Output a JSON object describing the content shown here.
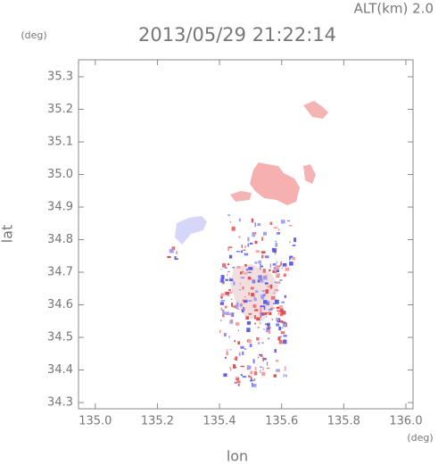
{
  "header": {
    "altitude": "ALT(km) 2.0",
    "timestamp": "2013/05/29 21:22:14",
    "y_unit": "(deg)",
    "x_unit": "(deg)"
  },
  "chart_data": {
    "type": "map",
    "xlabel": "lon",
    "ylabel": "lat",
    "xlim": [
      134.946,
      136.023
    ],
    "ylim": [
      34.281,
      35.352
    ],
    "xticks": [
      {
        "value": 135,
        "label": "135.0"
      },
      135.2,
      135.4,
      135.6,
      135.8,
      {
        "value": 136,
        "label": "136.0"
      }
    ],
    "yticks": [
      34.3,
      34.4,
      34.5,
      34.6,
      34.7,
      34.8,
      34.9,
      {
        "value": 35,
        "label": "35.0"
      },
      35.1,
      35.2,
      35.3
    ]
  }
}
